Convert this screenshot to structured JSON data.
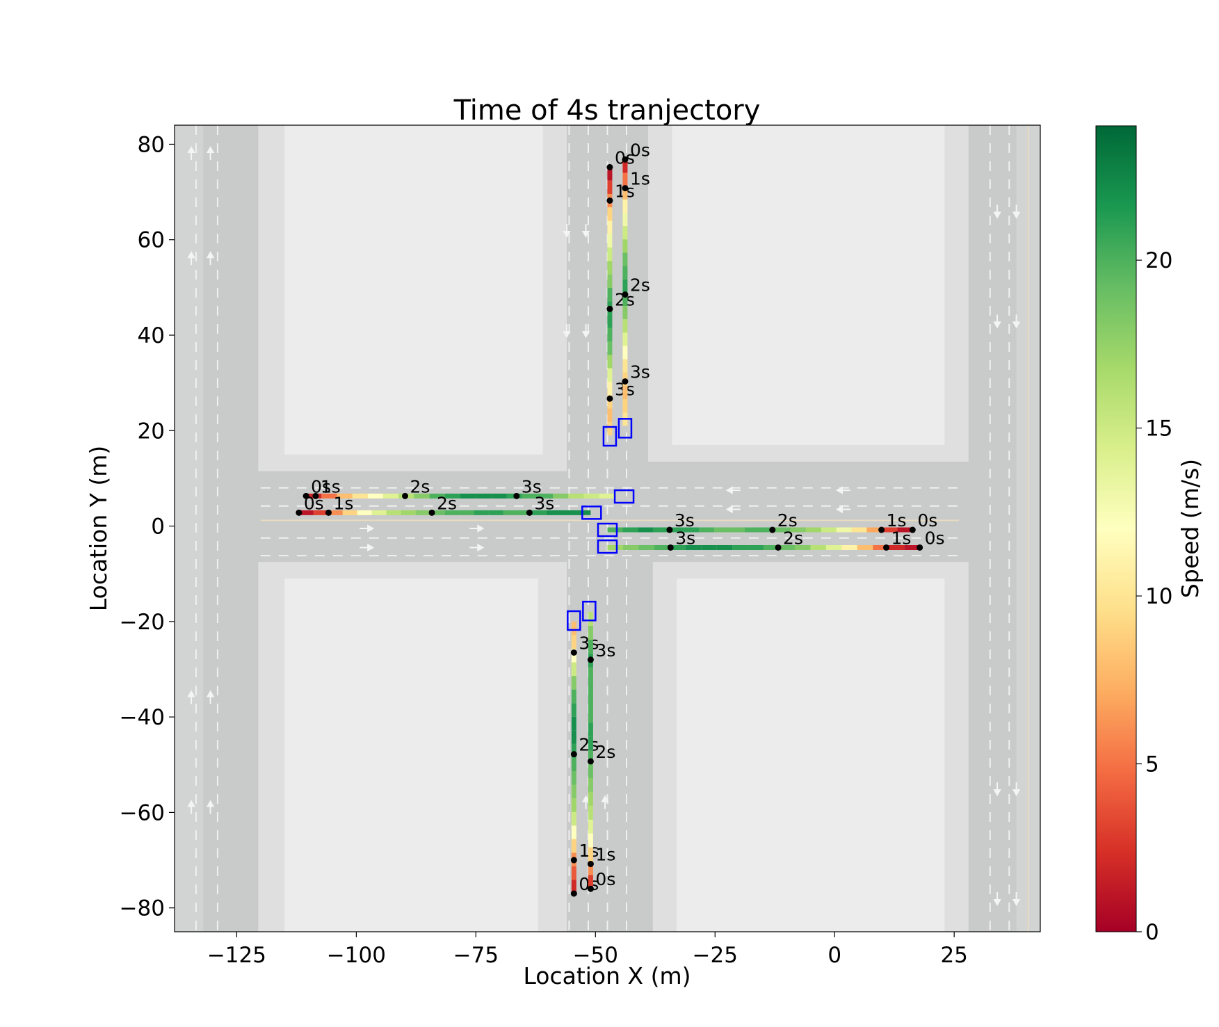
{
  "chart_data": {
    "type": "scatter",
    "title": "Time of 4s tranjectory",
    "xlabel": "Location X (m)",
    "ylabel": "Location Y (m)",
    "xlim": [
      -138,
      43
    ],
    "ylim": [
      -85,
      84
    ],
    "xticks": [
      -125,
      -100,
      -75,
      -50,
      -25,
      0,
      25
    ],
    "xtick_labels": [
      "−125",
      "−100",
      "−75",
      "−50",
      "−25",
      "0",
      "25"
    ],
    "yticks": [
      80,
      60,
      40,
      20,
      0,
      -20,
      -40,
      -60,
      -80
    ],
    "ytick_labels": [
      "80",
      "60",
      "40",
      "20",
      "0",
      "−20",
      "−40",
      "−60",
      "−80"
    ],
    "colorbar": {
      "label": "Speed (m/s)",
      "range": [
        0,
        24
      ],
      "ticks": [
        0,
        5,
        10,
        15,
        20
      ],
      "tick_labels": [
        "0",
        "5",
        "10",
        "15",
        "20"
      ],
      "colormap": "RdYlGn"
    },
    "series": [
      {
        "direction": "south",
        "path": [
          [
            -47,
            75.2
          ],
          [
            -47,
            19
          ]
        ],
        "speeds": [
          1,
          3,
          6,
          9,
          11,
          13,
          15,
          17,
          18,
          20,
          21,
          21,
          20,
          19,
          17,
          14,
          11,
          9,
          8,
          9
        ],
        "markers": [
          {
            "label": "0s",
            "x": -47,
            "y": 75.2
          },
          {
            "label": "1s",
            "x": -47,
            "y": 68.2
          },
          {
            "label": "2s",
            "x": -47,
            "y": 45.5
          },
          {
            "label": "3s",
            "x": -47,
            "y": 26.7
          }
        ],
        "box": {
          "x": -47,
          "y": 18.8
        }
      },
      {
        "direction": "south",
        "path": [
          [
            -43.8,
            76.8
          ],
          [
            -43.8,
            21
          ]
        ],
        "speeds": [
          2,
          5,
          8,
          11,
          13,
          15,
          17,
          19,
          20,
          21,
          20,
          18,
          16,
          14,
          12,
          10,
          9,
          8,
          9,
          10
        ],
        "markers": [
          {
            "label": "0s",
            "x": -43.8,
            "y": 76.8
          },
          {
            "label": "1s",
            "x": -43.8,
            "y": 70.8
          },
          {
            "label": "2s",
            "x": -43.8,
            "y": 48.5
          },
          {
            "label": "3s",
            "x": -43.8,
            "y": 30.3
          }
        ],
        "box": {
          "x": -43.8,
          "y": 20.5
        }
      },
      {
        "direction": "east",
        "path": [
          [
            -110.5,
            6.3
          ],
          [
            -46,
            6.3
          ]
        ],
        "speeds": [
          2,
          5,
          8,
          10,
          12,
          14,
          16,
          18,
          20,
          21,
          22,
          22,
          22,
          21,
          20,
          20,
          18,
          16,
          15,
          14
        ],
        "markers": [
          {
            "label": "0s",
            "x": -110.5,
            "y": 6.3
          },
          {
            "label": "1s",
            "x": -108.5,
            "y": 6.3
          },
          {
            "label": "2s",
            "x": -89.8,
            "y": 6.3
          },
          {
            "label": "3s",
            "x": -66.5,
            "y": 6.3
          }
        ],
        "box": {
          "x": -44,
          "y": 6.2
        }
      },
      {
        "direction": "east",
        "path": [
          [
            -112,
            2.8
          ],
          [
            -51,
            2.8
          ]
        ],
        "speeds": [
          1,
          3,
          6,
          9,
          12,
          14,
          16,
          17,
          18,
          19,
          20,
          20,
          21,
          21,
          20,
          20,
          21,
          22,
          22,
          22
        ],
        "markers": [
          {
            "label": "0s",
            "x": -112,
            "y": 2.8
          },
          {
            "label": "1s",
            "x": -105.8,
            "y": 2.8
          },
          {
            "label": "2s",
            "x": -84.2,
            "y": 2.8
          },
          {
            "label": "3s",
            "x": -63.8,
            "y": 2.8
          }
        ],
        "box": {
          "x": -50.8,
          "y": 2.8
        }
      },
      {
        "direction": "west",
        "path": [
          [
            16.3,
            -0.8
          ],
          [
            -47.5,
            -0.8
          ]
        ],
        "speeds": [
          1,
          3,
          7,
          10,
          13,
          15,
          17,
          18,
          19,
          20,
          20,
          19,
          19,
          20,
          21,
          21,
          21,
          22,
          21,
          20
        ],
        "markers": [
          {
            "label": "0s",
            "x": 16.3,
            "y": -0.8
          },
          {
            "label": "1s",
            "x": 9.8,
            "y": -0.8
          },
          {
            "label": "2s",
            "x": -13,
            "y": -0.8
          },
          {
            "label": "3s",
            "x": -34.5,
            "y": -0.8
          }
        ],
        "box": {
          "x": -47.5,
          "y": -0.8
        }
      },
      {
        "direction": "west",
        "path": [
          [
            17.8,
            -4.5
          ],
          [
            -47.5,
            -4.5
          ]
        ],
        "speeds": [
          1,
          2,
          5,
          8,
          11,
          14,
          16,
          18,
          19,
          20,
          21,
          21,
          22,
          22,
          22,
          21,
          20,
          19,
          18,
          17
        ],
        "markers": [
          {
            "label": "0s",
            "x": 17.8,
            "y": -4.5
          },
          {
            "label": "1s",
            "x": 10.8,
            "y": -4.5
          },
          {
            "label": "2s",
            "x": -11.8,
            "y": -4.5
          },
          {
            "label": "3s",
            "x": -34.3,
            "y": -4.5
          }
        ],
        "box": {
          "x": -47.5,
          "y": -4.3
        }
      },
      {
        "direction": "north",
        "path": [
          [
            -54.5,
            -77
          ],
          [
            -54.5,
            -20
          ]
        ],
        "speeds": [
          2,
          4,
          6,
          9,
          12,
          15,
          17,
          18,
          19,
          20,
          21,
          22,
          22,
          21,
          20,
          18,
          15,
          12,
          9,
          8
        ],
        "markers": [
          {
            "label": "0s",
            "x": -54.5,
            "y": -77
          },
          {
            "label": "1s",
            "x": -54.5,
            "y": -70
          },
          {
            "label": "2s",
            "x": -54.5,
            "y": -47.8
          },
          {
            "label": "3s",
            "x": -54.5,
            "y": -26.5
          }
        ],
        "box": {
          "x": -54.5,
          "y": -19.8
        }
      },
      {
        "direction": "north",
        "path": [
          [
            -51,
            -76
          ],
          [
            -51,
            -18
          ]
        ],
        "speeds": [
          3,
          6,
          9,
          12,
          14,
          16,
          17,
          18,
          19,
          20,
          21,
          21,
          20,
          20,
          20,
          20,
          21,
          20,
          18,
          16
        ],
        "markers": [
          {
            "label": "0s",
            "x": -51,
            "y": -76
          },
          {
            "label": "1s",
            "x": -51,
            "y": -70.8
          },
          {
            "label": "2s",
            "x": -51,
            "y": -49.3
          },
          {
            "label": "3s",
            "x": -51,
            "y": -28
          }
        ],
        "box": {
          "x": -51.3,
          "y": -17.8
        }
      }
    ]
  }
}
